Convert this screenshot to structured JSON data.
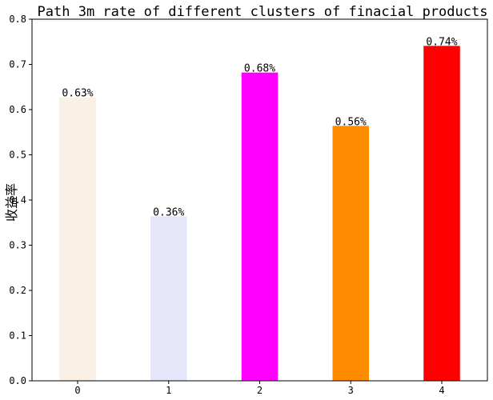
{
  "chart_data": {
    "type": "bar",
    "title": "Path_3m rate of different clusters of finacial products",
    "xlabel": "",
    "ylabel": "收益率",
    "categories": [
      "0",
      "1",
      "2",
      "3",
      "4"
    ],
    "values": [
      0.627,
      0.364,
      0.682,
      0.564,
      0.741
    ],
    "data_labels": [
      "0.63%",
      "0.36%",
      "0.68%",
      "0.56%",
      "0.74%"
    ],
    "colors": [
      "#faf0e6",
      "#e6e6fa",
      "#ff00ff",
      "#ff8c00",
      "#ff0000"
    ],
    "ylim": [
      0,
      0.8
    ],
    "yticks": [
      "0.0",
      "0.1",
      "0.2",
      "0.3",
      "0.4",
      "0.5",
      "0.6",
      "0.7",
      "0.8"
    ],
    "grid": false,
    "legend": "none"
  }
}
